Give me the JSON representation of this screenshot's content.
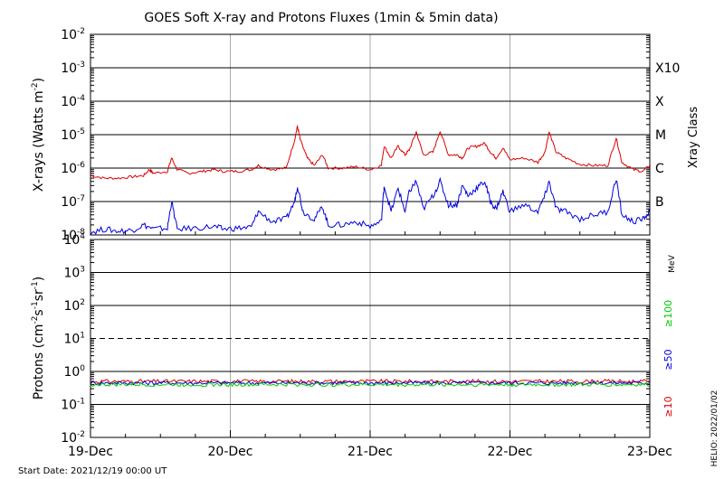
{
  "chart_data": [
    {
      "type": "line",
      "title": "GOES Soft X-ray and Protons Fluxes   (1min & 5min data)",
      "ylabel_base": "X-rays (Watts m",
      "ylabel_sup": "-2",
      "ylabel_end": ")",
      "yscale": "log",
      "ylim": [
        1e-08,
        0.01
      ],
      "y_ticks": [
        {
          "base": "10",
          "exp": "-8",
          "value": 1e-08
        },
        {
          "base": "10",
          "exp": "-7",
          "value": 1e-07
        },
        {
          "base": "10",
          "exp": "-6",
          "value": 1e-06
        },
        {
          "base": "10",
          "exp": "-5",
          "value": 1e-05
        },
        {
          "base": "10",
          "exp": "-4",
          "value": 0.0001
        },
        {
          "base": "10",
          "exp": "-3",
          "value": 0.001
        },
        {
          "base": "10",
          "exp": "-2",
          "value": 0.01
        }
      ],
      "xray_class_label": "Xray Class",
      "xray_classes": [
        {
          "label": "B",
          "value": 1e-07
        },
        {
          "label": "C",
          "value": 1e-06
        },
        {
          "label": "M",
          "value": 1e-05
        },
        {
          "label": "X",
          "value": 0.0001
        },
        {
          "label": "X10",
          "value": 0.001
        }
      ],
      "series": [
        {
          "color": "#dd0000",
          "points": [
            [
              0.0,
              6e-07
            ],
            [
              0.1,
              5e-07
            ],
            [
              0.2,
              5e-07
            ],
            [
              0.3,
              5.5e-07
            ],
            [
              0.38,
              6e-07
            ],
            [
              0.42,
              9e-07
            ],
            [
              0.45,
              7e-07
            ],
            [
              0.55,
              8e-07
            ],
            [
              0.58,
              2e-06
            ],
            [
              0.62,
              9e-07
            ],
            [
              0.7,
              7e-07
            ],
            [
              0.8,
              8e-07
            ],
            [
              0.88,
              9e-07
            ],
            [
              0.95,
              8e-07
            ],
            [
              1.05,
              8e-07
            ],
            [
              1.15,
              9e-07
            ],
            [
              1.2,
              1.2e-06
            ],
            [
              1.3,
              9e-07
            ],
            [
              1.4,
              1e-06
            ],
            [
              1.46,
              7e-06
            ],
            [
              1.48,
              1.8e-05
            ],
            [
              1.5,
              7e-06
            ],
            [
              1.55,
              2e-06
            ],
            [
              1.6,
              1.2e-06
            ],
            [
              1.66,
              2.5e-06
            ],
            [
              1.7,
              1e-06
            ],
            [
              1.8,
              1e-06
            ],
            [
              1.9,
              1.1e-06
            ],
            [
              2.0,
              9e-07
            ],
            [
              2.08,
              1.2e-06
            ],
            [
              2.1,
              4.5e-06
            ],
            [
              2.15,
              2e-06
            ],
            [
              2.2,
              4.5e-06
            ],
            [
              2.25,
              2.5e-06
            ],
            [
              2.28,
              3.5e-06
            ],
            [
              2.33,
              1.2e-05
            ],
            [
              2.38,
              2.5e-06
            ],
            [
              2.45,
              3e-06
            ],
            [
              2.5,
              1.3e-05
            ],
            [
              2.56,
              2.5e-06
            ],
            [
              2.62,
              2.5e-06
            ],
            [
              2.66,
              2e-06
            ],
            [
              2.7,
              4e-06
            ],
            [
              2.76,
              4.5e-06
            ],
            [
              2.82,
              5.5e-06
            ],
            [
              2.86,
              3e-06
            ],
            [
              2.9,
              2e-06
            ],
            [
              2.95,
              4e-06
            ],
            [
              3.0,
              1.8e-06
            ],
            [
              3.1,
              2e-06
            ],
            [
              3.2,
              1.5e-06
            ],
            [
              3.25,
              3e-06
            ],
            [
              3.28,
              1.2e-05
            ],
            [
              3.33,
              3e-06
            ],
            [
              3.4,
              2e-06
            ],
            [
              3.5,
              1.3e-06
            ],
            [
              3.6,
              1.2e-06
            ],
            [
              3.7,
              1.2e-06
            ],
            [
              3.76,
              8e-06
            ],
            [
              3.8,
              1.5e-06
            ],
            [
              3.88,
              9e-07
            ],
            [
              3.95,
              8e-07
            ],
            [
              4.0,
              1.2e-06
            ]
          ]
        },
        {
          "color": "#0000dd",
          "points": [
            [
              0.0,
              1.2e-08
            ],
            [
              0.1,
              1.5e-08
            ],
            [
              0.2,
              1.3e-08
            ],
            [
              0.3,
              1.4e-08
            ],
            [
              0.38,
              2e-08
            ],
            [
              0.45,
              1.5e-08
            ],
            [
              0.55,
              1.6e-08
            ],
            [
              0.58,
              1e-07
            ],
            [
              0.62,
              1.5e-08
            ],
            [
              0.75,
              1.6e-08
            ],
            [
              0.88,
              1.8e-08
            ],
            [
              0.95,
              1.5e-08
            ],
            [
              1.05,
              1.6e-08
            ],
            [
              1.15,
              1.7e-08
            ],
            [
              1.2,
              5e-08
            ],
            [
              1.3,
              2.5e-08
            ],
            [
              1.4,
              3e-08
            ],
            [
              1.46,
              1e-07
            ],
            [
              1.48,
              3e-07
            ],
            [
              1.52,
              5e-08
            ],
            [
              1.6,
              3e-08
            ],
            [
              1.66,
              7e-08
            ],
            [
              1.7,
              2e-08
            ],
            [
              1.8,
              2e-08
            ],
            [
              1.9,
              2.5e-08
            ],
            [
              2.0,
              1.8e-08
            ],
            [
              2.08,
              2.5e-08
            ],
            [
              2.1,
              3e-07
            ],
            [
              2.15,
              5e-08
            ],
            [
              2.2,
              2.5e-07
            ],
            [
              2.25,
              5e-08
            ],
            [
              2.28,
              2e-07
            ],
            [
              2.33,
              4e-07
            ],
            [
              2.38,
              6e-08
            ],
            [
              2.45,
              1.5e-07
            ],
            [
              2.5,
              4e-07
            ],
            [
              2.56,
              8e-08
            ],
            [
              2.62,
              8e-08
            ],
            [
              2.66,
              3e-07
            ],
            [
              2.7,
              1.5e-07
            ],
            [
              2.76,
              2.5e-07
            ],
            [
              2.82,
              4e-07
            ],
            [
              2.86,
              1e-07
            ],
            [
              2.9,
              6e-08
            ],
            [
              2.95,
              2e-07
            ],
            [
              3.0,
              5e-08
            ],
            [
              3.1,
              8e-08
            ],
            [
              3.2,
              5e-08
            ],
            [
              3.25,
              1.5e-07
            ],
            [
              3.28,
              4e-07
            ],
            [
              3.33,
              6e-08
            ],
            [
              3.4,
              5e-08
            ],
            [
              3.5,
              3e-08
            ],
            [
              3.6,
              4e-08
            ],
            [
              3.7,
              5e-08
            ],
            [
              3.76,
              5e-07
            ],
            [
              3.8,
              4e-08
            ],
            [
              3.88,
              2.5e-08
            ],
            [
              3.95,
              3e-08
            ],
            [
              4.0,
              5e-08
            ]
          ]
        }
      ]
    },
    {
      "type": "line",
      "ylabel_base": "Protons (cm",
      "ylabel_parts": [
        {
          "text": "Protons (cm",
          "sup": false
        },
        {
          "text": "-2",
          "sup": true
        },
        {
          "text": "s",
          "sup": false
        },
        {
          "text": "-1",
          "sup": true
        },
        {
          "text": "sr",
          "sup": false
        },
        {
          "text": "-1",
          "sup": true
        },
        {
          "text": ")",
          "sup": false
        }
      ],
      "yscale": "log",
      "ylim": [
        0.01,
        10000.0
      ],
      "y_ticks": [
        {
          "base": "10",
          "exp": "-2",
          "value": 0.01
        },
        {
          "base": "10",
          "exp": "-1",
          "value": 0.1
        },
        {
          "base": "10",
          "exp": "0",
          "value": 1.0
        },
        {
          "base": "10",
          "exp": "1",
          "value": 10.0
        },
        {
          "base": "10",
          "exp": "2",
          "value": 100.0
        },
        {
          "base": "10",
          "exp": "3",
          "value": 1000.0
        },
        {
          "base": "10",
          "exp": "4",
          "value": 10000.0
        }
      ],
      "threshold": 10,
      "energy_unit": "MeV",
      "series": [
        {
          "name": "≥10",
          "color": "#dd0000",
          "level": 0.5
        },
        {
          "name": "≥50",
          "color": "#0000dd",
          "level": 0.45
        },
        {
          "name": "≥100",
          "color": "#00cc00",
          "level": 0.4
        }
      ]
    }
  ],
  "x_axis": {
    "categories": [
      "19-Dec",
      "20-Dec",
      "21-Dec",
      "22-Dec",
      "23-Dec"
    ],
    "xlim": [
      0,
      4
    ]
  },
  "footer": {
    "start_date": "Start Date: 2021/12/19 00:00 UT",
    "credit": "HELIO: 2022/01/02"
  }
}
